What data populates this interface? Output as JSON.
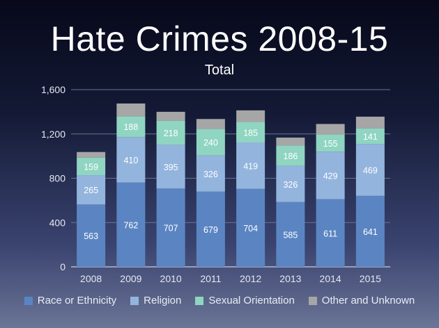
{
  "chart_data": {
    "type": "bar",
    "stacked": true,
    "title": "Hate Crimes 2008-15",
    "subtitle": "Total",
    "categories": [
      "2008",
      "2009",
      "2010",
      "2011",
      "2012",
      "2013",
      "2014",
      "2015"
    ],
    "series": [
      {
        "name": "Race or Ethnicity",
        "color": "#5b85c2",
        "values": [
          563,
          762,
          707,
          679,
          704,
          585,
          611,
          641
        ]
      },
      {
        "name": "Religion",
        "color": "#93b4dd",
        "values": [
          265,
          410,
          395,
          326,
          419,
          326,
          429,
          469
        ]
      },
      {
        "name": "Sexual Orientation",
        "color": "#8fd5c1",
        "values": [
          159,
          188,
          218,
          240,
          185,
          186,
          155,
          141
        ]
      },
      {
        "name": "Other and Unknown",
        "color": "#a6a6a6",
        "values": [
          50,
          115,
          80,
          90,
          105,
          70,
          95,
          105
        ]
      }
    ],
    "yticks": [
      "0",
      "400",
      "800",
      "1,200",
      "1,600"
    ],
    "ylim": [
      0,
      1600
    ],
    "grid": true,
    "legend_position": "bottom"
  }
}
